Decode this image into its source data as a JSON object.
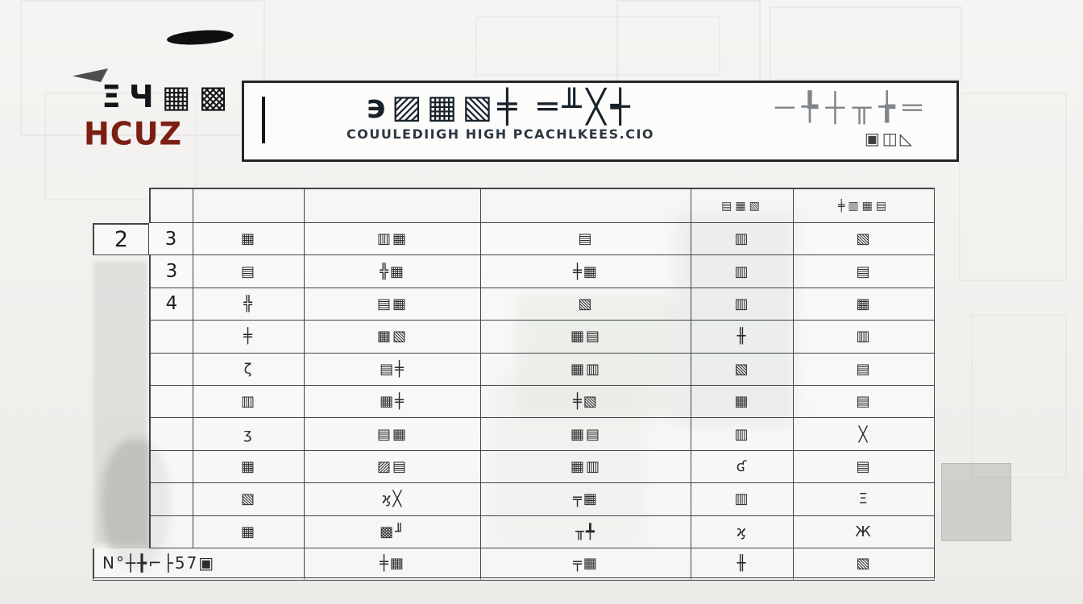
{
  "logo": {
    "glyphs": "ΞЧ▦▩",
    "wordmark": "HCUZ",
    "wordmark_color": "#7c1e12"
  },
  "banner": {
    "title": "϶▨▦▧╪ ═╨╳┽",
    "subtitle": "COUULEDIIGH HIGH PCACHLKEES.CIO",
    "sketch_main": "─╄┼╥╆═",
    "sketch_sub": "▣◫◺"
  },
  "table": {
    "col_headers": [
      "",
      "",
      "",
      "",
      "",
      "▤▦▧",
      "╪▥▦▤"
    ],
    "rows": [
      [
        "2",
        "3",
        "▦",
        "▥▦",
        "▤",
        "▥",
        "▧"
      ],
      [
        "",
        "3",
        "▤",
        "╬▦",
        "╪▦",
        "▥",
        "▤"
      ],
      [
        "",
        "4",
        "╬",
        "▤▦",
        "▧",
        "▥",
        "▦"
      ],
      [
        "",
        "",
        "╪",
        "▦▧",
        "▦▤",
        "╫",
        "▥"
      ],
      [
        "",
        "",
        "ζ",
        "▤╪",
        "▦▥",
        "▧",
        "▤"
      ],
      [
        "",
        "",
        "▥",
        "▦╪",
        "╪▧",
        "▦",
        "▤"
      ],
      [
        "",
        "",
        "ʒ",
        "▤▦",
        "▦▤",
        "▥",
        "╳"
      ],
      [
        "",
        "",
        "▦",
        "▨▤",
        "▦▥",
        "ʛ",
        "▤"
      ],
      [
        "",
        "",
        "▧",
        "ϗ╳",
        "╤▦",
        "▥",
        "Ξ"
      ],
      [
        "",
        "",
        "▦",
        "▩╜",
        "╥╇",
        "ϗ",
        "Ж"
      ],
      [
        "N°┼╊⌐├57▣",
        "",
        "",
        "╪▦",
        "╤▦",
        "╫",
        "▧"
      ]
    ]
  },
  "colors": {
    "accent": "#7c1e12",
    "table_line": "#3e454c",
    "title_ink": "#18222a"
  }
}
